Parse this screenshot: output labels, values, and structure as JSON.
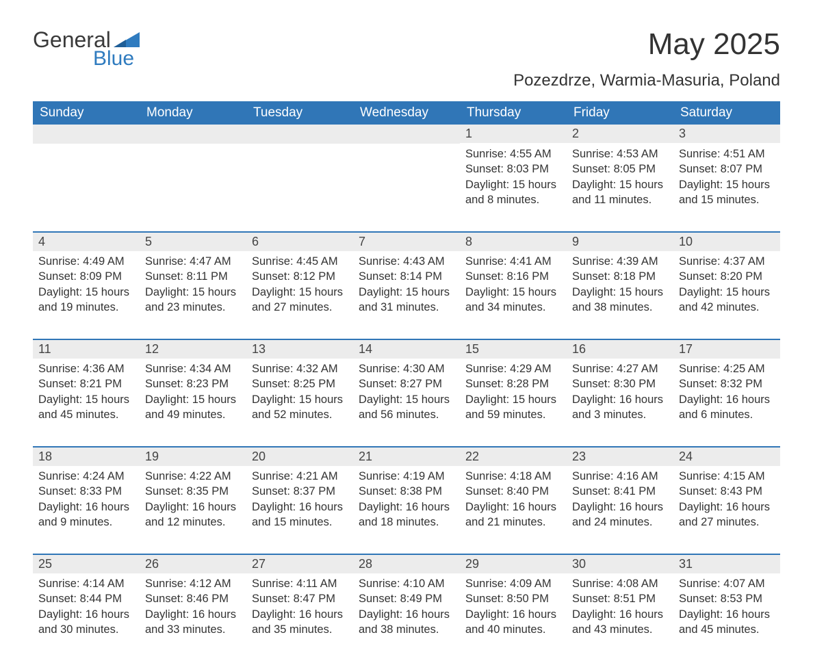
{
  "logo": {
    "word1": "General",
    "word2": "Blue"
  },
  "title": "May 2025",
  "location": "Pozezdrze, Warmia-Masuria, Poland",
  "colors": {
    "header_bg": "#3076b7",
    "header_text": "#ffffff",
    "daynum_bg": "#ececec",
    "row_border": "#3076b7",
    "body_text": "#333333",
    "logo_blue": "#2f7bbf",
    "page_bg": "#ffffff"
  },
  "day_headers": [
    "Sunday",
    "Monday",
    "Tuesday",
    "Wednesday",
    "Thursday",
    "Friday",
    "Saturday"
  ],
  "labels": {
    "sunrise": "Sunrise:",
    "sunset": "Sunset:",
    "daylight": "Daylight:"
  },
  "weeks": [
    [
      null,
      null,
      null,
      null,
      {
        "n": "1",
        "sr": "4:55 AM",
        "ss": "8:03 PM",
        "dl": "15 hours and 8 minutes."
      },
      {
        "n": "2",
        "sr": "4:53 AM",
        "ss": "8:05 PM",
        "dl": "15 hours and 11 minutes."
      },
      {
        "n": "3",
        "sr": "4:51 AM",
        "ss": "8:07 PM",
        "dl": "15 hours and 15 minutes."
      }
    ],
    [
      {
        "n": "4",
        "sr": "4:49 AM",
        "ss": "8:09 PM",
        "dl": "15 hours and 19 minutes."
      },
      {
        "n": "5",
        "sr": "4:47 AM",
        "ss": "8:11 PM",
        "dl": "15 hours and 23 minutes."
      },
      {
        "n": "6",
        "sr": "4:45 AM",
        "ss": "8:12 PM",
        "dl": "15 hours and 27 minutes."
      },
      {
        "n": "7",
        "sr": "4:43 AM",
        "ss": "8:14 PM",
        "dl": "15 hours and 31 minutes."
      },
      {
        "n": "8",
        "sr": "4:41 AM",
        "ss": "8:16 PM",
        "dl": "15 hours and 34 minutes."
      },
      {
        "n": "9",
        "sr": "4:39 AM",
        "ss": "8:18 PM",
        "dl": "15 hours and 38 minutes."
      },
      {
        "n": "10",
        "sr": "4:37 AM",
        "ss": "8:20 PM",
        "dl": "15 hours and 42 minutes."
      }
    ],
    [
      {
        "n": "11",
        "sr": "4:36 AM",
        "ss": "8:21 PM",
        "dl": "15 hours and 45 minutes."
      },
      {
        "n": "12",
        "sr": "4:34 AM",
        "ss": "8:23 PM",
        "dl": "15 hours and 49 minutes."
      },
      {
        "n": "13",
        "sr": "4:32 AM",
        "ss": "8:25 PM",
        "dl": "15 hours and 52 minutes."
      },
      {
        "n": "14",
        "sr": "4:30 AM",
        "ss": "8:27 PM",
        "dl": "15 hours and 56 minutes."
      },
      {
        "n": "15",
        "sr": "4:29 AM",
        "ss": "8:28 PM",
        "dl": "15 hours and 59 minutes."
      },
      {
        "n": "16",
        "sr": "4:27 AM",
        "ss": "8:30 PM",
        "dl": "16 hours and 3 minutes."
      },
      {
        "n": "17",
        "sr": "4:25 AM",
        "ss": "8:32 PM",
        "dl": "16 hours and 6 minutes."
      }
    ],
    [
      {
        "n": "18",
        "sr": "4:24 AM",
        "ss": "8:33 PM",
        "dl": "16 hours and 9 minutes."
      },
      {
        "n": "19",
        "sr": "4:22 AM",
        "ss": "8:35 PM",
        "dl": "16 hours and 12 minutes."
      },
      {
        "n": "20",
        "sr": "4:21 AM",
        "ss": "8:37 PM",
        "dl": "16 hours and 15 minutes."
      },
      {
        "n": "21",
        "sr": "4:19 AM",
        "ss": "8:38 PM",
        "dl": "16 hours and 18 minutes."
      },
      {
        "n": "22",
        "sr": "4:18 AM",
        "ss": "8:40 PM",
        "dl": "16 hours and 21 minutes."
      },
      {
        "n": "23",
        "sr": "4:16 AM",
        "ss": "8:41 PM",
        "dl": "16 hours and 24 minutes."
      },
      {
        "n": "24",
        "sr": "4:15 AM",
        "ss": "8:43 PM",
        "dl": "16 hours and 27 minutes."
      }
    ],
    [
      {
        "n": "25",
        "sr": "4:14 AM",
        "ss": "8:44 PM",
        "dl": "16 hours and 30 minutes."
      },
      {
        "n": "26",
        "sr": "4:12 AM",
        "ss": "8:46 PM",
        "dl": "16 hours and 33 minutes."
      },
      {
        "n": "27",
        "sr": "4:11 AM",
        "ss": "8:47 PM",
        "dl": "16 hours and 35 minutes."
      },
      {
        "n": "28",
        "sr": "4:10 AM",
        "ss": "8:49 PM",
        "dl": "16 hours and 38 minutes."
      },
      {
        "n": "29",
        "sr": "4:09 AM",
        "ss": "8:50 PM",
        "dl": "16 hours and 40 minutes."
      },
      {
        "n": "30",
        "sr": "4:08 AM",
        "ss": "8:51 PM",
        "dl": "16 hours and 43 minutes."
      },
      {
        "n": "31",
        "sr": "4:07 AM",
        "ss": "8:53 PM",
        "dl": "16 hours and 45 minutes."
      }
    ]
  ]
}
